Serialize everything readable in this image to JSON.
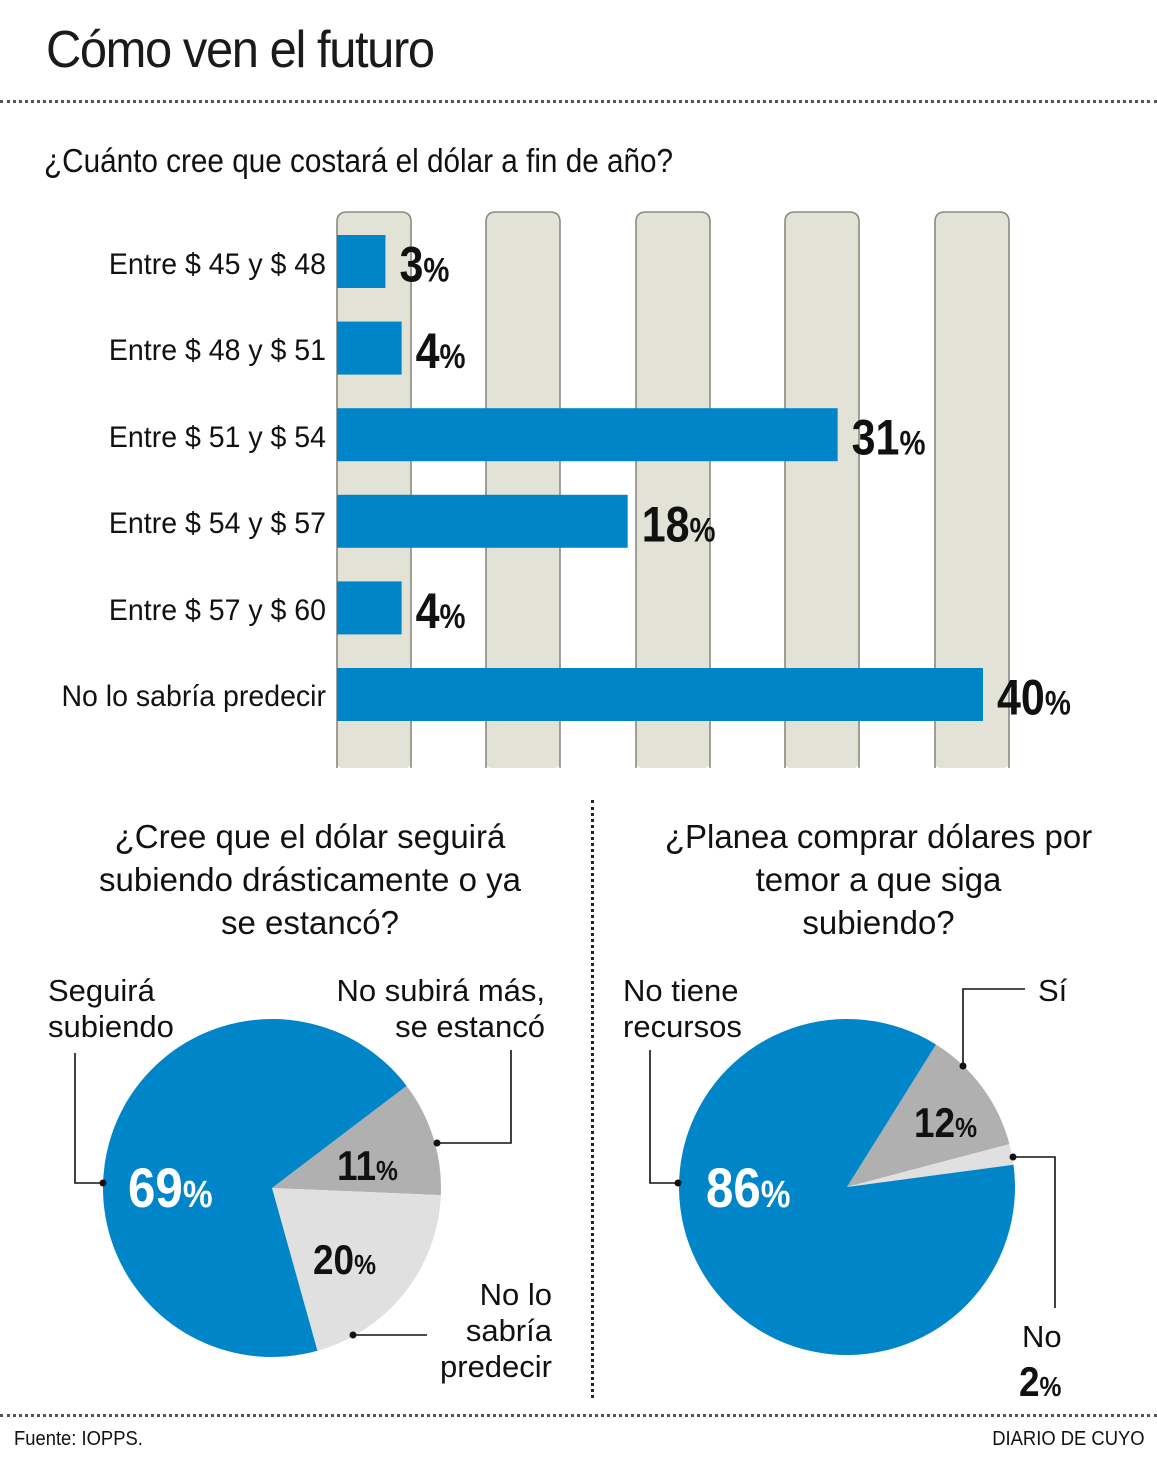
{
  "header": {
    "title": "Cómo ven el futuro"
  },
  "colors": {
    "blue": "#0086C8",
    "dark_gray": "#B0B0B0",
    "light_gray": "#E0E0E0",
    "column_bg": "#E2E2D6",
    "column_border": "#8A8A80",
    "text": "#111111",
    "pie_value_on_blue": "#FFFFFF"
  },
  "chart_data": [
    {
      "type": "bar",
      "orientation": "horizontal",
      "title": "¿Cuánto cree que costará el dólar a fin de año?",
      "categories": [
        "Entre $ 45 y $ 48",
        "Entre $ 48 y $ 51",
        "Entre $ 51 y $ 54",
        "Entre $ 54 y $ 57",
        "Entre $ 57 y $ 60",
        "No lo sabría predecir"
      ],
      "values": [
        3,
        4,
        31,
        18,
        4,
        40
      ],
      "value_labels": [
        "3",
        "4",
        "31",
        "18",
        "4",
        "40"
      ],
      "unit": "%",
      "xlabel": "",
      "ylabel": "",
      "xlim": [
        0,
        45
      ],
      "grid": "alternating column bands",
      "legend": "none"
    },
    {
      "type": "pie",
      "title": "¿Cree que el dólar seguirá subiendo drásticamente o ya se estancó?",
      "title_lines": [
        "¿Cree que el dólar seguirá",
        "subiendo drásticamente o ya",
        "se estancó?"
      ],
      "slices": [
        {
          "label": "No subirá más, se estancó",
          "label_lines": [
            "No subirá más,",
            "se estancó"
          ],
          "value": 11,
          "display": "11",
          "color": "#B0B0B0"
        },
        {
          "label": "No lo sabría predecir",
          "label_lines": [
            "No lo",
            "sabría",
            "predecir"
          ],
          "value": 20,
          "display": "20",
          "color": "#E0E0E0"
        },
        {
          "label": "Seguirá subiendo",
          "label_lines": [
            "Seguirá",
            "subiendo"
          ],
          "value": 69,
          "display": "69",
          "color": "#0086C8"
        }
      ],
      "unit": "%",
      "legend": "leader-line callouts"
    },
    {
      "type": "pie",
      "title": "¿Planea comprar dólares por temor a que siga subiendo?",
      "title_lines": [
        "¿Planea comprar dólares por",
        "temor a que siga",
        "subiendo?"
      ],
      "slices": [
        {
          "label": "Sí",
          "label_lines": [
            "Sí"
          ],
          "value": 12,
          "display": "12",
          "color": "#B0B0B0"
        },
        {
          "label": "No",
          "label_lines": [
            "No"
          ],
          "value": 2,
          "display": "2",
          "color": "#E0E0E0"
        },
        {
          "label": "No tiene recursos",
          "label_lines": [
            "No tiene",
            "recursos"
          ],
          "value": 86,
          "display": "86",
          "color": "#0086C8"
        }
      ],
      "unit": "%",
      "legend": "leader-line callouts"
    }
  ],
  "footer": {
    "source": "Fuente: IOPPS.",
    "publisher": "DIARIO DE CUYO"
  }
}
